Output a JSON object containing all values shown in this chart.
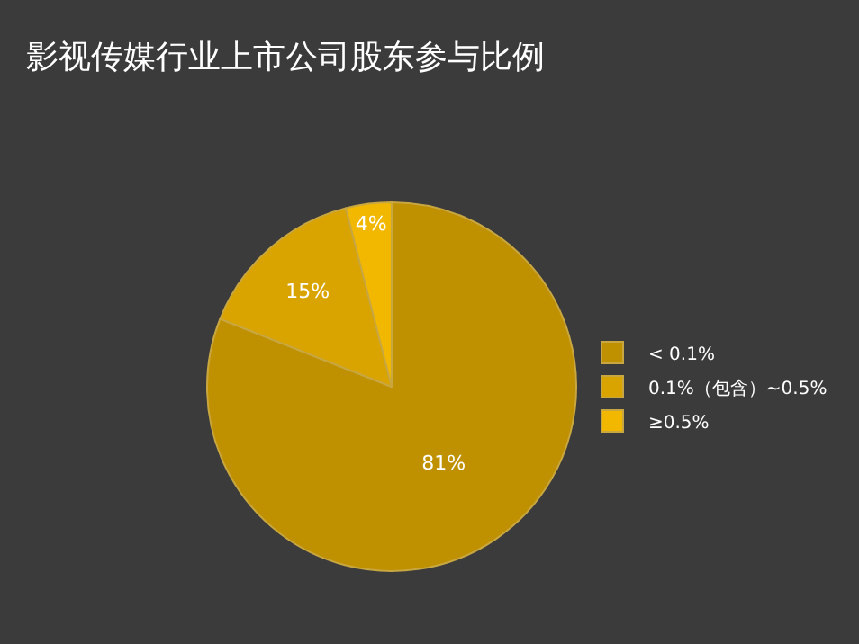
{
  "chart_data": {
    "type": "pie",
    "title": "影视传媒行业上市公司股东参与比例",
    "categories": [
      "< 0.1%",
      "0.1%（包含）~0.5%",
      "≥0.5%"
    ],
    "values": [
      81,
      15,
      4
    ],
    "colors": [
      "#bf9000",
      "#d9a300",
      "#f2b800"
    ],
    "value_labels": [
      "81%",
      "15%",
      "4%"
    ],
    "legend": "right"
  }
}
